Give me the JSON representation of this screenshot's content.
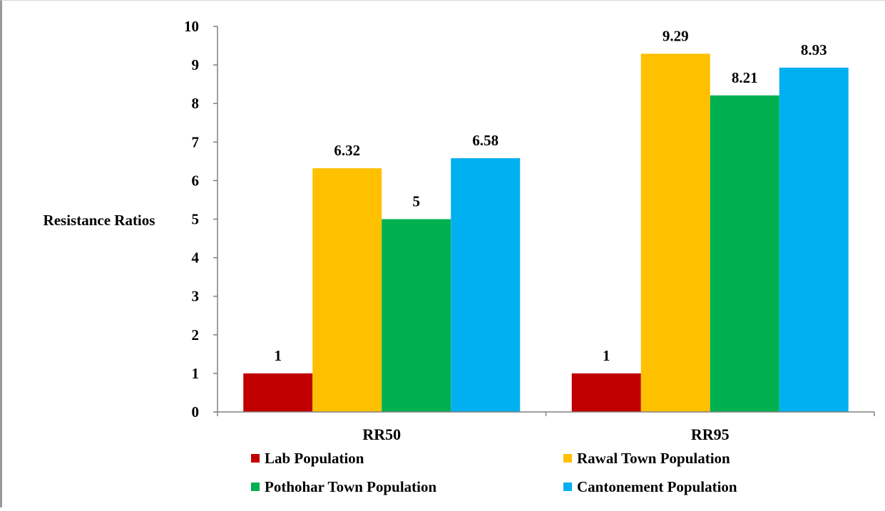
{
  "chart_data": {
    "type": "bar",
    "title": "",
    "xlabel": "",
    "ylabel": "Resistance Ratios",
    "ylim": [
      0,
      10
    ],
    "yticks": [
      0,
      1,
      2,
      3,
      4,
      5,
      6,
      7,
      8,
      9,
      10
    ],
    "grid": false,
    "legend_position": "bottom",
    "categories": [
      "RR50",
      "RR95"
    ],
    "series": [
      {
        "name": "Lab Population",
        "color": "#c00000",
        "values": [
          1,
          1
        ],
        "labels": [
          "1",
          "1"
        ]
      },
      {
        "name": "Rawal Town Population",
        "color": "#ffc000",
        "values": [
          6.32,
          9.29
        ],
        "labels": [
          "6.32",
          "9.29"
        ]
      },
      {
        "name": "Pothohar Town Population",
        "color": "#00b050",
        "values": [
          5,
          8.21
        ],
        "labels": [
          "5",
          "8.21"
        ]
      },
      {
        "name": "Cantonement Population",
        "color": "#00b0f0",
        "values": [
          6.58,
          8.93
        ],
        "labels": [
          "6.58",
          "8.93"
        ]
      }
    ]
  }
}
